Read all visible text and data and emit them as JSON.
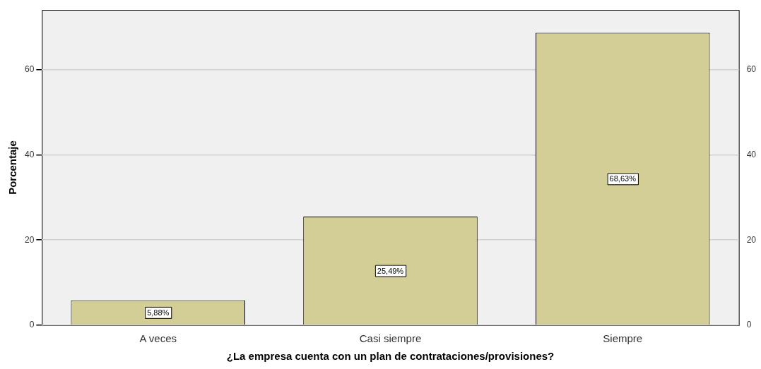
{
  "chart_data": {
    "type": "bar",
    "categories": [
      "A veces",
      "Casi siempre",
      "Siempre"
    ],
    "values": [
      5.88,
      25.49,
      68.63
    ],
    "value_labels": [
      "5,88%",
      "25,49%",
      "68,63%"
    ],
    "color": "#d3cd96",
    "xlabel": "¿La empresa cuenta con un plan de contrataciones/provisiones?",
    "ylabel": "Porcentaje",
    "ylim": [
      0,
      74
    ],
    "yticks": [
      0,
      20,
      40,
      60
    ],
    "y2lim": [
      0,
      74
    ],
    "y2ticks": [
      0,
      20,
      40,
      60
    ],
    "grid": "y",
    "legend": false
  }
}
